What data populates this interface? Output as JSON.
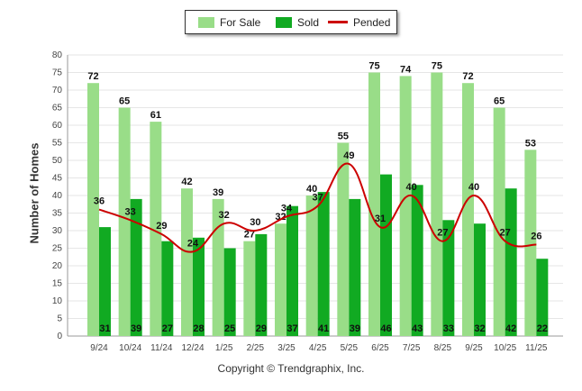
{
  "legend": {
    "for_sale": "For Sale",
    "sold": "Sold",
    "pended": "Pended"
  },
  "colors": {
    "for_sale": "#99dd88",
    "sold": "#11aa22",
    "pended": "#cc0000"
  },
  "footer": "Copyright © Trendgraphix, Inc.",
  "chart_data": {
    "type": "bar",
    "title": "",
    "xlabel": "",
    "ylabel": "Number of Homes",
    "ylim": [
      0,
      80
    ],
    "yticks": [
      0,
      5,
      10,
      15,
      20,
      25,
      30,
      35,
      40,
      45,
      50,
      55,
      60,
      65,
      70,
      75,
      80
    ],
    "categories": [
      "9/24",
      "10/24",
      "11/24",
      "12/24",
      "1/25",
      "2/25",
      "3/25",
      "4/25",
      "5/25",
      "6/25",
      "7/25",
      "8/25",
      "9/25",
      "10/25",
      "11/25"
    ],
    "series": [
      {
        "name": "For Sale",
        "kind": "bar",
        "values": [
          72,
          65,
          61,
          42,
          39,
          27,
          32,
          40,
          55,
          75,
          74,
          75,
          72,
          65,
          53
        ]
      },
      {
        "name": "Sold",
        "kind": "bar",
        "values": [
          31,
          39,
          27,
          28,
          25,
          29,
          37,
          41,
          39,
          46,
          43,
          33,
          32,
          42,
          22
        ]
      },
      {
        "name": "Pended",
        "kind": "line",
        "values": [
          36,
          33,
          29,
          24,
          32,
          30,
          34,
          37,
          49,
          31,
          40,
          27,
          40,
          27,
          26
        ]
      }
    ],
    "grid": true,
    "legend_position": "top-center"
  }
}
